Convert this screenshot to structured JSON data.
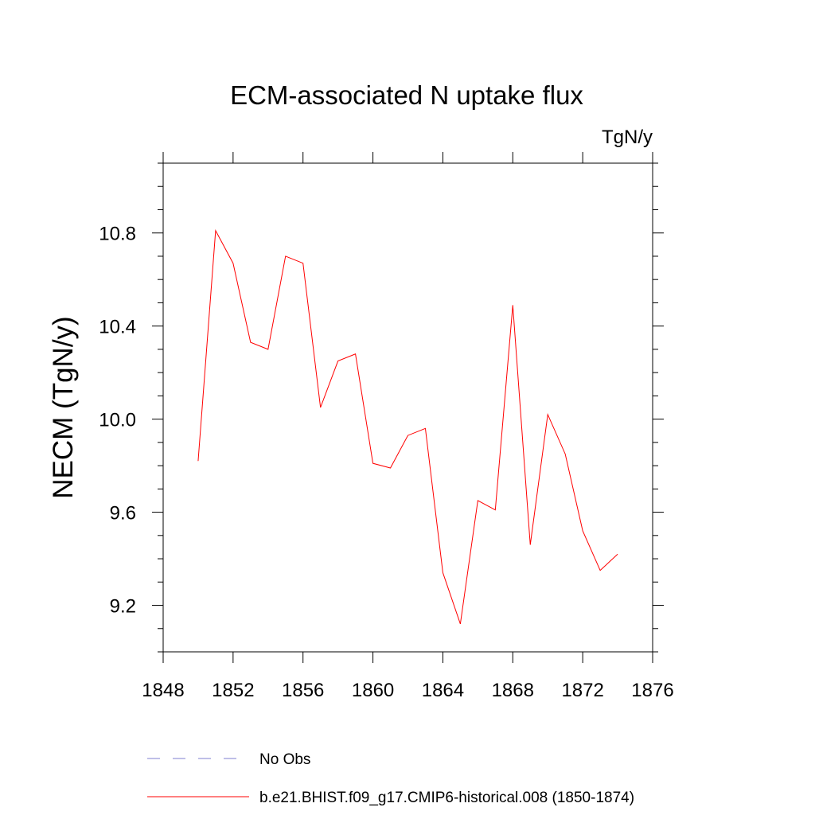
{
  "chart_data": {
    "type": "line",
    "title": "ECM-associated N uptake flux",
    "units_label": "TgN/y",
    "xlabel": "",
    "ylabel": "NECM  (TgN/y)",
    "xlim": [
      1848,
      1876
    ],
    "ylim": [
      9.0,
      11.1
    ],
    "x_ticks": [
      1848,
      1852,
      1856,
      1860,
      1864,
      1868,
      1872,
      1876
    ],
    "x_tick_labels": [
      "1848",
      "1852",
      "1856",
      "1860",
      "1864",
      "1868",
      "1872",
      "1876"
    ],
    "y_ticks": [
      9.2,
      9.6,
      10.0,
      10.4,
      10.8
    ],
    "y_tick_labels": [
      "9.2",
      "9.6",
      "10.0",
      "10.4",
      "10.8"
    ],
    "grid": false,
    "legend_position": "bottom",
    "series": [
      {
        "name": "b.e21.BHIST.f09_g17.CMIP6-historical.008 (1850-1874)",
        "color": "#ff0000",
        "style": "solid",
        "x": [
          1850,
          1851,
          1852,
          1853,
          1854,
          1855,
          1856,
          1857,
          1858,
          1859,
          1860,
          1861,
          1862,
          1863,
          1864,
          1865,
          1866,
          1867,
          1868,
          1869,
          1870,
          1871,
          1872,
          1873,
          1874
        ],
        "values": [
          9.82,
          10.81,
          10.67,
          10.33,
          10.3,
          10.7,
          10.67,
          10.05,
          10.25,
          10.28,
          9.81,
          9.79,
          9.93,
          9.96,
          9.34,
          9.12,
          9.65,
          9.61,
          10.49,
          9.46,
          10.02,
          9.85,
          9.52,
          9.35,
          9.42
        ]
      }
    ],
    "legend": [
      {
        "label": "No Obs",
        "color": "#7f7fd0",
        "style": "dashed"
      },
      {
        "label": "b.e21.BHIST.f09_g17.CMIP6-historical.008 (1850-1874)",
        "color": "#ff0000",
        "style": "solid"
      }
    ]
  }
}
